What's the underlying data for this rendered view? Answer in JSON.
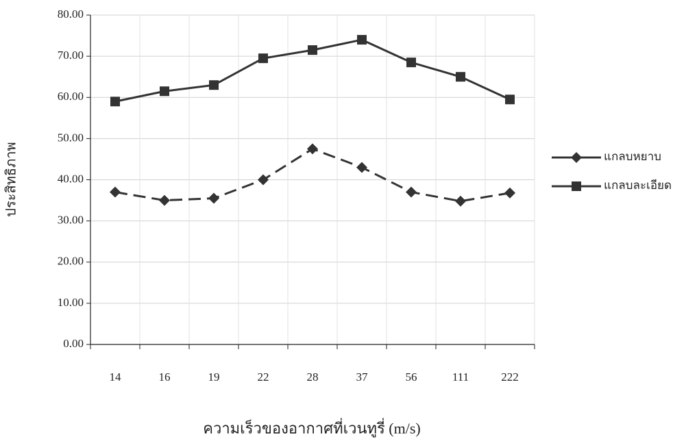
{
  "chart_data": {
    "type": "line",
    "x_label": "ความเร็วของอากาศที่เวนทูรี่ (m/s)",
    "y_label": "ประสิทธิภาพ",
    "categories": [
      "14",
      "16",
      "19",
      "22",
      "28",
      "37",
      "56",
      "111",
      "222"
    ],
    "series": [
      {
        "name": "แกลบหยาบ",
        "color": "#333333",
        "line_style": "dashed",
        "marker": "diamond",
        "values": [
          37,
          35,
          35.5,
          40,
          47.5,
          43,
          37,
          34.8,
          36.8
        ]
      },
      {
        "name": "แกลบละเอียด",
        "color": "#333333",
        "line_style": "solid",
        "marker": "square",
        "values": [
          59,
          61.5,
          63,
          69.5,
          71.5,
          74,
          68.5,
          65,
          59.5
        ]
      }
    ],
    "ylim": [
      0,
      80
    ],
    "yticks": [
      {
        "value": 0,
        "label": "0.00"
      },
      {
        "value": 10,
        "label": "10.00"
      },
      {
        "value": 20,
        "label": "20.00"
      },
      {
        "value": 30,
        "label": "30.00"
      },
      {
        "value": 40,
        "label": "40.00"
      },
      {
        "value": 50,
        "label": "50.00"
      },
      {
        "value": 60,
        "label": "60.00"
      },
      {
        "value": 70,
        "label": "70.00"
      },
      {
        "value": 80,
        "label": "80.00"
      }
    ],
    "grid": true,
    "legend": "right"
  }
}
